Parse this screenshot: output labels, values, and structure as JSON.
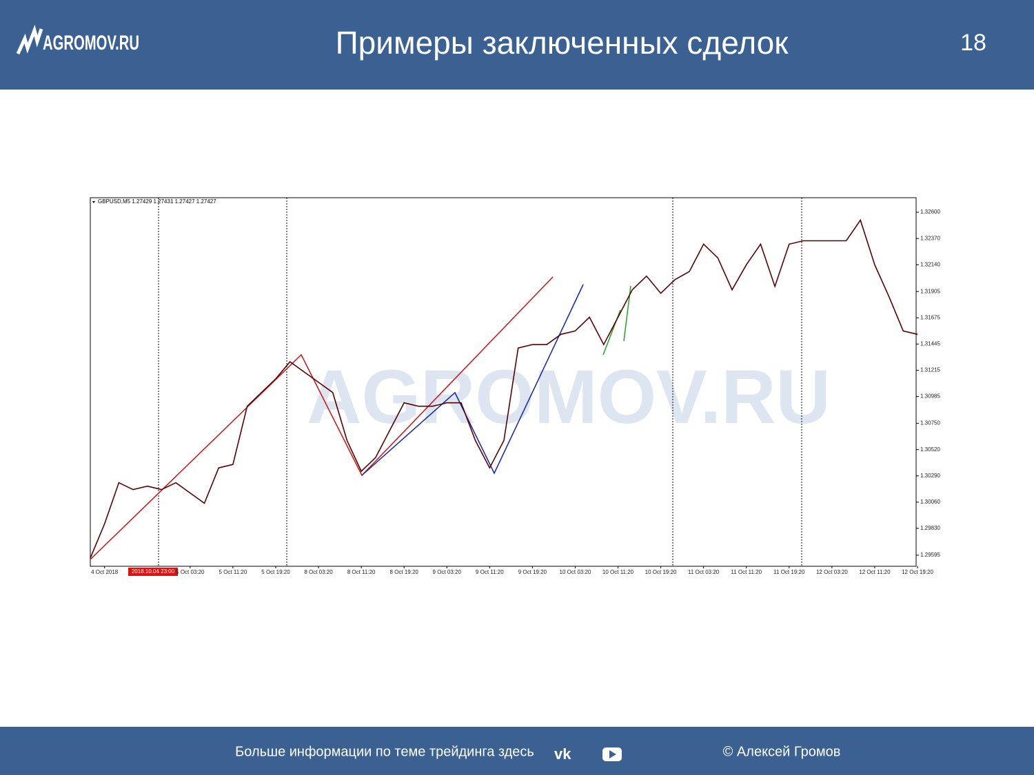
{
  "header": {
    "logo": "AGROMOV.RU",
    "title": "Примеры заключенных сделок",
    "page_number": "18"
  },
  "chart_data": {
    "type": "line",
    "symbol_label": "GBPUSD,M5  1.27429 1.27431 1.27427 1.27427",
    "crosshair_label": "2018.10.04 23:00",
    "watermark": "AGROMOV.RU",
    "color": "#5a0000",
    "categories": [
      null,
      "4 Oct 2018",
      null,
      null,
      null,
      null,
      null,
      "5 Oct 03:20",
      null,
      null,
      "5 Oct 11:20",
      null,
      null,
      "5 Oct 19:20",
      null,
      null,
      "8 Oct 03:20",
      null,
      null,
      "8 Oct 11:20",
      null,
      null,
      "8 Oct 19:20",
      null,
      null,
      "9 Oct 03:20",
      null,
      null,
      "9 Oct 11:20",
      null,
      null,
      "9 Oct 19:20",
      null,
      null,
      "10 Oct 03:20",
      null,
      null,
      "10 Oct 11:20",
      null,
      null,
      "10 Oct 19:20",
      null,
      null,
      "11 Oct 03:20",
      null,
      null,
      "11 Oct 11:20",
      null,
      null,
      "11 Oct 19:20",
      null,
      null,
      "12 Oct 03:20",
      null,
      null,
      "12 Oct 11:20",
      null,
      null,
      "12 Oct 19:20"
    ],
    "values": [
      1.2957,
      1.2987,
      1.3023,
      1.3017,
      1.302,
      1.3017,
      1.3023,
      1.3014,
      1.3005,
      1.3036,
      1.3039,
      1.309,
      1.3102,
      1.3114,
      1.3129,
      1.312,
      1.3111,
      1.3102,
      1.306,
      1.3033,
      1.3045,
      1.3069,
      1.3093,
      1.309,
      1.309,
      1.3093,
      1.3093,
      1.306,
      1.3036,
      1.306,
      1.3141,
      1.3144,
      1.3144,
      1.3153,
      1.3156,
      1.3168,
      1.3144,
      1.3168,
      1.3192,
      1.3204,
      1.3189,
      1.3201,
      1.3208,
      1.3232,
      1.322,
      1.3192,
      1.3214,
      1.3232,
      1.3195,
      1.3232,
      1.3235,
      1.3235,
      1.3235,
      1.3235,
      1.3253,
      1.3214,
      1.3186,
      1.3156,
      1.3153
    ],
    "ylim": [
      1.29498,
      1.32727
    ],
    "yticks": [
      {
        "value": 1.326,
        "label": "1.32600"
      },
      {
        "value": 1.3237,
        "label": "1.32370"
      },
      {
        "value": 1.3214,
        "label": "1.32140"
      },
      {
        "value": 1.31905,
        "label": "1.31905"
      },
      {
        "value": 1.31675,
        "label": "1.31675"
      },
      {
        "value": 1.31445,
        "label": "1.31445"
      },
      {
        "value": 1.31215,
        "label": "1.31215"
      },
      {
        "value": 1.30985,
        "label": "1.30985"
      },
      {
        "value": 1.3075,
        "label": "1.30750"
      },
      {
        "value": 1.3052,
        "label": "1.30520"
      },
      {
        "value": 1.3029,
        "label": "1.30290"
      },
      {
        "value": 1.3006,
        "label": "1.30060"
      },
      {
        "value": 1.2983,
        "label": "1.29830"
      },
      {
        "value": 1.29595,
        "label": "1.29595"
      }
    ]
  },
  "footer": {
    "text": "Больше информации по теме трейдинга здесь",
    "author": "© Алексей Громов"
  }
}
